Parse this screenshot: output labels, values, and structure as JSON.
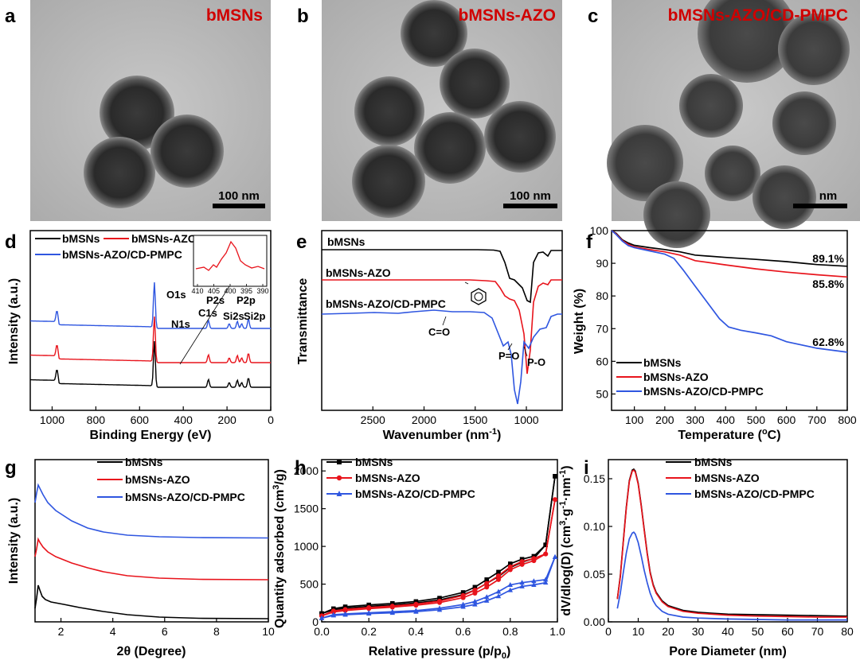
{
  "panels": {
    "a": {
      "letter": "a",
      "label": "bMSNs",
      "scale": "100 nm"
    },
    "b": {
      "letter": "b",
      "label": "bMSNs-AZO",
      "scale": "100 nm"
    },
    "c": {
      "letter": "c",
      "label": "bMSNs-AZO/CD-PMPC",
      "scale": "nm"
    },
    "d": {
      "letter": "d"
    },
    "e": {
      "letter": "e"
    },
    "f": {
      "letter": "f"
    },
    "g": {
      "letter": "g"
    },
    "h": {
      "letter": "h"
    },
    "i": {
      "letter": "i"
    }
  },
  "colors": {
    "bMSNs": "#000000",
    "bMSNs-AZO": "#e8141c",
    "bMSNs-AZO/CD-PMPC": "#2f56e0"
  },
  "chart_data": [
    {
      "id": "d",
      "type": "line",
      "xlabel": "Binding Energy (eV)",
      "ylabel": "Intensity (a.u.)",
      "xlim": [
        1100,
        0
      ],
      "xticks": [
        "1000",
        "800",
        "600",
        "400",
        "200",
        "0"
      ],
      "series": [
        {
          "name": "bMSNs"
        },
        {
          "name": "bMSNs-AZO"
        },
        {
          "name": "bMSNs-AZO/CD-PMPC"
        }
      ],
      "annotations": [
        "O1s",
        "N1s",
        "C1s",
        "P2s",
        "Si2s",
        "P2p",
        "Si2p"
      ],
      "inset": {
        "xticks": [
          "410",
          "405",
          "400",
          "395",
          "390"
        ]
      }
    },
    {
      "id": "e",
      "type": "line",
      "xlabel": "Wavenumber (nm",
      "xlabel_sup": "-1",
      "xlabel_end": ")",
      "ylabel": "Transmittance",
      "xlim": [
        3000,
        650
      ],
      "xticks": [
        "2500",
        "2000",
        "1500",
        "1000"
      ],
      "series": [
        {
          "name": "bMSNs"
        },
        {
          "name": "bMSNs-AZO"
        },
        {
          "name": "bMSNs-AZO/CD-PMPC"
        }
      ],
      "annotations": [
        "C=O",
        "P=O",
        "P-O"
      ]
    },
    {
      "id": "f",
      "type": "line",
      "xlabel": "Temperature (",
      "xlabel_sup": "o",
      "xlabel_end": "C)",
      "ylabel": "Weight (%)",
      "xlim": [
        25,
        800
      ],
      "ylim": [
        45,
        100
      ],
      "xticks": [
        "100",
        "200",
        "300",
        "400",
        "500",
        "600",
        "700",
        "800"
      ],
      "yticks": [
        "50",
        "60",
        "70",
        "80",
        "90",
        "100"
      ],
      "series": [
        {
          "name": "bMSNs",
          "end_label": "89.1%",
          "x": [
            25,
            40,
            60,
            80,
            100,
            150,
            200,
            250,
            300,
            400,
            500,
            600,
            700,
            800
          ],
          "y": [
            100,
            99.2,
            97.2,
            96.2,
            95.5,
            94.8,
            94.2,
            93.5,
            92.5,
            91.8,
            91.2,
            90.5,
            89.6,
            89.1
          ]
        },
        {
          "name": "bMSNs-AZO",
          "end_label": "85.8%",
          "x": [
            25,
            40,
            60,
            80,
            100,
            150,
            200,
            250,
            300,
            400,
            500,
            600,
            700,
            800
          ],
          "y": [
            100,
            99,
            97,
            95.8,
            95,
            94.2,
            93.5,
            92.5,
            90.8,
            89.5,
            88.3,
            87.3,
            86.5,
            85.8
          ]
        },
        {
          "name": "bMSNs-AZO/CD-PMPC",
          "end_label": "62.8%",
          "x": [
            25,
            40,
            60,
            80,
            100,
            150,
            200,
            230,
            260,
            300,
            340,
            380,
            410,
            450,
            500,
            550,
            600,
            700,
            800
          ],
          "y": [
            100,
            98.8,
            96.8,
            95.4,
            94.8,
            93.8,
            92.8,
            91.5,
            88,
            83,
            78,
            73,
            70.5,
            69.5,
            68.7,
            67.8,
            66,
            64,
            62.8
          ]
        }
      ]
    },
    {
      "id": "g",
      "type": "line",
      "xlabel": "2θ (Degree)",
      "ylabel": "Intensity (a.u.)",
      "xlim": [
        1,
        10
      ],
      "xticks": [
        "2",
        "4",
        "6",
        "8",
        "10"
      ],
      "series": [
        {
          "name": "bMSNs"
        },
        {
          "name": "bMSNs-AZO"
        },
        {
          "name": "bMSNs-AZO/CD-PMPC"
        }
      ]
    },
    {
      "id": "h",
      "type": "line",
      "xlabel": "Relative pressure (p/p",
      "xlabel_sub": "0",
      "xlabel_end": ")",
      "ylabel": "Quantity adsorbed (cm",
      "ylabel_sup": "3",
      "ylabel_end": "/g)",
      "xlim": [
        0,
        1
      ],
      "ylim": [
        0,
        2150
      ],
      "xticks": [
        "0.0",
        "0.2",
        "0.4",
        "0.6",
        "0.8",
        "1.0"
      ],
      "yticks": [
        "0",
        "500",
        "1000",
        "1500",
        "2000"
      ],
      "series": [
        {
          "name": "bMSNs",
          "x": [
            0.0,
            0.05,
            0.1,
            0.2,
            0.3,
            0.4,
            0.5,
            0.6,
            0.65,
            0.7,
            0.75,
            0.8,
            0.85,
            0.9,
            0.95,
            0.99
          ],
          "y": [
            110,
            160,
            180,
            205,
            225,
            250,
            290,
            360,
            420,
            510,
            600,
            720,
            790,
            840,
            1020,
            1930
          ],
          "desorption_y": [
            110,
            175,
            200,
            225,
            245,
            270,
            315,
            390,
            460,
            560,
            660,
            770,
            830,
            870,
            1020,
            1930
          ]
        },
        {
          "name": "bMSNs-AZO",
          "x": [
            0.0,
            0.05,
            0.1,
            0.2,
            0.3,
            0.4,
            0.5,
            0.6,
            0.65,
            0.7,
            0.75,
            0.8,
            0.85,
            0.9,
            0.95,
            0.99
          ],
          "y": [
            80,
            130,
            150,
            175,
            195,
            220,
            255,
            320,
            380,
            460,
            560,
            690,
            760,
            810,
            900,
            1620
          ],
          "desorption_y": [
            80,
            145,
            165,
            190,
            210,
            235,
            275,
            350,
            420,
            510,
            610,
            730,
            800,
            840,
            900,
            1620
          ]
        },
        {
          "name": "bMSNs-AZO/CD-PMPC",
          "x": [
            0.0,
            0.05,
            0.1,
            0.2,
            0.3,
            0.4,
            0.5,
            0.6,
            0.65,
            0.7,
            0.75,
            0.8,
            0.85,
            0.9,
            0.95,
            0.99
          ],
          "y": [
            50,
            85,
            95,
            110,
            120,
            135,
            160,
            200,
            230,
            280,
            340,
            420,
            470,
            490,
            520,
            860
          ],
          "desorption_y": [
            50,
            95,
            105,
            120,
            135,
            150,
            180,
            230,
            270,
            330,
            400,
            490,
            520,
            540,
            560,
            860
          ]
        }
      ]
    },
    {
      "id": "i",
      "type": "line",
      "xlabel": "Pore Diameter (nm)",
      "ylabel": "dV/dlog(D) (cm",
      "ylabel_sup1": "3",
      "ylabel_mid": "·g",
      "ylabel_sup2": "-1",
      "ylabel_mid2": "·nm",
      "ylabel_sup3": "-1",
      "ylabel_end": ")",
      "xlim": [
        0,
        80
      ],
      "ylim": [
        0,
        0.17
      ],
      "xticks": [
        "0",
        "10",
        "20",
        "30",
        "40",
        "50",
        "60",
        "70",
        "80"
      ],
      "yticks": [
        "0.00",
        "0.05",
        "0.10",
        "0.15"
      ],
      "series": [
        {
          "name": "bMSNs",
          "x": [
            3,
            4,
            5,
            6,
            7,
            8,
            8.5,
            9,
            10,
            11,
            12,
            13,
            14,
            15,
            16,
            18,
            20,
            25,
            30,
            40,
            50,
            60,
            70,
            80
          ],
          "y": [
            0.024,
            0.048,
            0.085,
            0.12,
            0.148,
            0.159,
            0.16,
            0.158,
            0.145,
            0.122,
            0.097,
            0.072,
            0.052,
            0.039,
            0.031,
            0.022,
            0.017,
            0.012,
            0.01,
            0.008,
            0.0075,
            0.007,
            0.0065,
            0.006
          ]
        },
        {
          "name": "bMSNs-AZO",
          "x": [
            3,
            4,
            5,
            6,
            7,
            8,
            8.5,
            9,
            10,
            11,
            12,
            13,
            14,
            15,
            16,
            18,
            20,
            25,
            30,
            40,
            50,
            60,
            70,
            80
          ],
          "y": [
            0.024,
            0.047,
            0.084,
            0.119,
            0.147,
            0.158,
            0.159,
            0.157,
            0.144,
            0.121,
            0.096,
            0.071,
            0.051,
            0.038,
            0.03,
            0.021,
            0.016,
            0.011,
            0.009,
            0.007,
            0.006,
            0.0055,
            0.005,
            0.005
          ]
        },
        {
          "name": "bMSNs-AZO/CD-PMPC",
          "x": [
            3,
            4,
            5,
            6,
            7,
            8,
            8.5,
            9,
            10,
            11,
            12,
            13,
            14,
            15,
            16,
            18,
            20,
            25,
            30,
            40,
            50,
            60,
            70,
            80
          ],
          "y": [
            0.014,
            0.03,
            0.052,
            0.072,
            0.087,
            0.093,
            0.094,
            0.092,
            0.083,
            0.069,
            0.054,
            0.041,
            0.03,
            0.022,
            0.017,
            0.011,
            0.008,
            0.005,
            0.004,
            0.003,
            0.0025,
            0.002,
            0.002,
            0.002
          ]
        }
      ]
    }
  ]
}
